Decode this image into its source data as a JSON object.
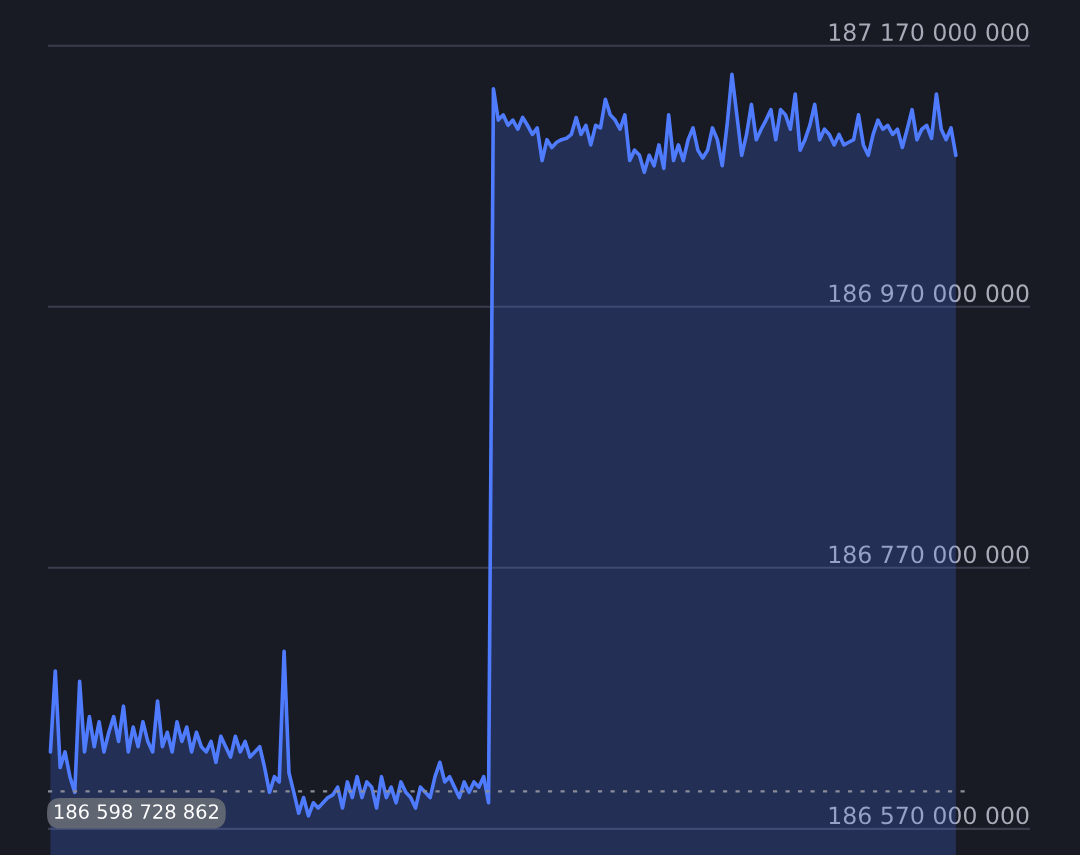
{
  "chart_data": {
    "type": "area",
    "categories": [
      null,
      null,
      null,
      null,
      null,
      null,
      null,
      null,
      null,
      null,
      null,
      null,
      null,
      null,
      null,
      null,
      null,
      null,
      null,
      null,
      null,
      null,
      null,
      null,
      null,
      null,
      null,
      null,
      null,
      null,
      null,
      null,
      null,
      null,
      null,
      null,
      null,
      null,
      null,
      null,
      null,
      null,
      null,
      null,
      null,
      null,
      null,
      null,
      null,
      null,
      null,
      null,
      null,
      null,
      null,
      null,
      null,
      null,
      null,
      null,
      null,
      null,
      null,
      null,
      null,
      null,
      null,
      null,
      null,
      null,
      null,
      null,
      null,
      null,
      null,
      null,
      null,
      null,
      null,
      null,
      null,
      null,
      null,
      null,
      null,
      null,
      null,
      null,
      null,
      null,
      null,
      null,
      null,
      null,
      null,
      null,
      null,
      null,
      null,
      null,
      null,
      null,
      null,
      null,
      null,
      null,
      null,
      null,
      null,
      null,
      null,
      null,
      null,
      null,
      null,
      null,
      null,
      null,
      null,
      null,
      null,
      null,
      null,
      null,
      null,
      null,
      null,
      null,
      null,
      null,
      null,
      null,
      null,
      null,
      null,
      null,
      null,
      null,
      null,
      null,
      null,
      null,
      null,
      null,
      null,
      null,
      null,
      null,
      null,
      null,
      null,
      null,
      null,
      null,
      null,
      null,
      null,
      null,
      null,
      null,
      null,
      null,
      null,
      null,
      null,
      null,
      null,
      null,
      null,
      null,
      null,
      null,
      null,
      null,
      null,
      null,
      null,
      null,
      null,
      null,
      null,
      null,
      null,
      null,
      null,
      null,
      null
    ],
    "series": [
      {
        "color": "#4f7cff",
        "values": [
          186629000000.0,
          186691000000.0,
          186617000000.0,
          186629000000.0,
          186610000000.0,
          186598000000.0,
          186683000000.0,
          186629000000.0,
          186656000000.0,
          186633000000.0,
          186652000000.0,
          186629000000.0,
          186644000000.0,
          186656000000.0,
          186637000000.0,
          186664000000.0,
          186629000000.0,
          186648000000.0,
          186633000000.0,
          186652000000.0,
          186637000000.0,
          186629000000.0,
          186668000000.0,
          186633000000.0,
          186644000000.0,
          186629000000.0,
          186652000000.0,
          186637000000.0,
          186648000000.0,
          186629000000.0,
          186644000000.0,
          186633000000.0,
          186629000000.0,
          186637000000.0,
          186621000000.0,
          186641000000.0,
          186633000000.0,
          186625000000.0,
          186641000000.0,
          186629000000.0,
          186637000000.0,
          186625000000.0,
          186629000000.0,
          186633000000.0,
          186617000000.0,
          186598000000.0,
          186610000000.0,
          186606000000.0,
          186706000000.0,
          186613000000.0,
          186598000000.0,
          186582000000.0,
          186594000000.0,
          186580000000.0,
          186590000000.0,
          186586000000.0,
          186590000000.0,
          186594000000.0,
          186596000000.0,
          186602000000.0,
          186586000000.0,
          186606000000.0,
          186594000000.0,
          186610000000.0,
          186594000000.0,
          186606000000.0,
          186602000000.0,
          186586000000.0,
          186610000000.0,
          186594000000.0,
          186602000000.0,
          186590000000.0,
          186606000000.0,
          186598000000.0,
          186594000000.0,
          186586000000.0,
          186602000000.0,
          186598000000.0,
          186594000000.0,
          186610000000.0,
          186621000000.0,
          186606000000.0,
          186610000000.0,
          186602000000.0,
          186594000000.0,
          186606000000.0,
          186598000000.0,
          186606000000.0,
          186602000000.0,
          186610000000.0,
          186590000000.0,
          187137000000.0,
          187113000000.0,
          187117000000.0,
          187109000000.0,
          187113000000.0,
          187106000000.0,
          187115000000.0,
          187109000000.0,
          187102000000.0,
          187107000000.0,
          187082000000.0,
          187098000000.0,
          187092000000.0,
          187096000000.0,
          187098000000.0,
          187099000000.0,
          187102000000.0,
          187115000000.0,
          187102000000.0,
          187109000000.0,
          187094000000.0,
          187109000000.0,
          187107000000.0,
          187129000000.0,
          187117000000.0,
          187113000000.0,
          187106000000.0,
          187117000000.0,
          187082000000.0,
          187090000000.0,
          187086000000.0,
          187073000000.0,
          187086000000.0,
          187078000000.0,
          187094000000.0,
          187076000000.0,
          187117000000.0,
          187082000000.0,
          187094000000.0,
          187082000000.0,
          187098000000.0,
          187107000000.0,
          187090000000.0,
          187084000000.0,
          187090000000.0,
          187107000000.0,
          187098000000.0,
          187078000000.0,
          187109000000.0,
          187148000000.0,
          187117000000.0,
          187086000000.0,
          187102000000.0,
          187125000000.0,
          187098000000.0,
          187106000000.0,
          187113000000.0,
          187121000000.0,
          187098000000.0,
          187121000000.0,
          187117000000.0,
          187106000000.0,
          187133000000.0,
          187090000000.0,
          187098000000.0,
          187109000000.0,
          187125000000.0,
          187098000000.0,
          187106000000.0,
          187102000000.0,
          187094000000.0,
          187102000000.0,
          187094000000.0,
          187096000000.0,
          187098000000.0,
          187117000000.0,
          187094000000.0,
          187086000000.0,
          187102000000.0,
          187113000000.0,
          187106000000.0,
          187109000000.0,
          187102000000.0,
          187106000000.0,
          187092000000.0,
          187106000000.0,
          187121000000.0,
          187098000000.0,
          187106000000.0,
          187109000000.0,
          187099000000.0,
          187133000000.0,
          187106000000.0,
          187098000000.0,
          187107000000.0,
          187086000000.0
        ]
      }
    ],
    "ylim": [
      186550000000,
      187205000000
    ],
    "yticks": [
      {
        "value": 186570000000,
        "label": "186 570 000 000"
      },
      {
        "value": 186770000000,
        "label": "186 770 000 000"
      },
      {
        "value": 186970000000,
        "label": "186 970 000 000"
      },
      {
        "value": 187170000000,
        "label": "187 170 000 000"
      }
    ],
    "grid": "y",
    "ref_lines": [
      {
        "axis": "y",
        "value": 186598728862,
        "label": "186 598 728 862",
        "color": "#8a8d99",
        "line_style": "dotted"
      }
    ]
  }
}
